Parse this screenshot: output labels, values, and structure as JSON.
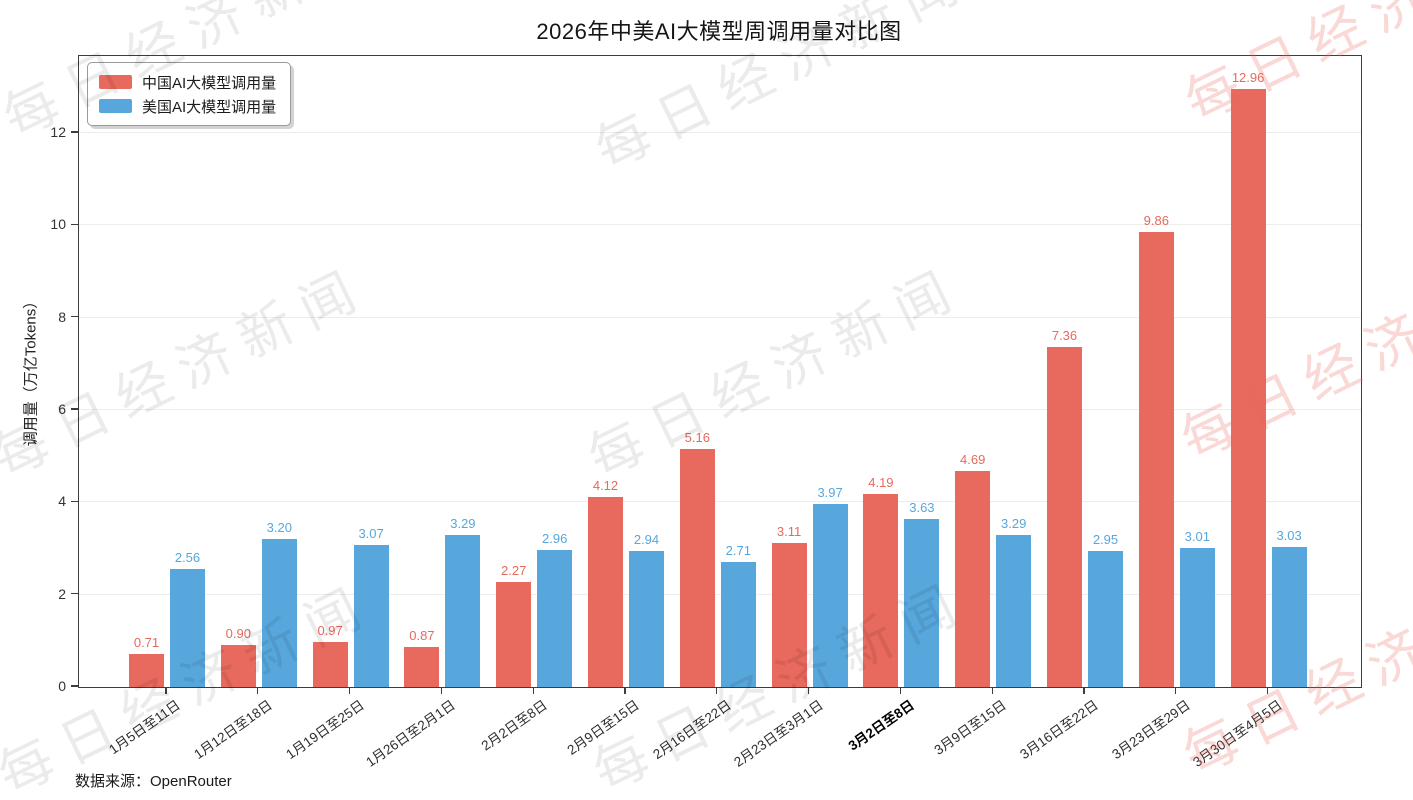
{
  "title": "2026年中美AI大模型周调用量对比图",
  "source_note": "数据来源：OpenRouter",
  "watermark_text": "每日经济新闻",
  "colors": {
    "china_bar": "#E8695E",
    "us_bar": "#57A7DC",
    "grid_line": "#EDEDED",
    "axis_spine": "#3D3D3D",
    "tick_label": "#333333",
    "watermark_gray": "rgba(0,0,0,0.08)",
    "watermark_pink": "rgba(232,106,96,0.26)"
  },
  "chart_data": {
    "type": "bar",
    "title": "2026年中美AI大模型周调用量对比图",
    "xlabel": "",
    "ylabel": "调用量（万亿Tokens）",
    "categories": [
      "1月5日至11日",
      "1月12日至18日",
      "1月19日至25日",
      "1月26日至2月1日",
      "2月2日至8日",
      "2月9日至15日",
      "2月16日至22日",
      "2月23日至3月1日",
      "3月2日至8日",
      "3月9日至15日",
      "3月16日至22日",
      "3月23日至29日",
      "3月30日至4月5日"
    ],
    "series": [
      {
        "name": "中国AI大模型调用量",
        "color": "#E8695E",
        "values": [
          0.71,
          0.9,
          0.97,
          0.87,
          2.27,
          4.12,
          5.16,
          3.11,
          4.19,
          4.69,
          7.36,
          9.86,
          12.96
        ]
      },
      {
        "name": "美国AI大模型调用量",
        "color": "#57A7DC",
        "values": [
          2.56,
          3.2,
          3.07,
          3.29,
          2.96,
          2.94,
          2.71,
          3.97,
          3.63,
          3.29,
          2.95,
          3.01,
          3.03
        ]
      }
    ],
    "yticks": [
      0,
      2,
      4,
      6,
      8,
      10,
      12
    ],
    "ylim": [
      0,
      13.67
    ],
    "grid": true,
    "legend_position": "upper-left",
    "value_labels": true,
    "value_label_decimals": 2,
    "highlighted_category_index": 8
  }
}
